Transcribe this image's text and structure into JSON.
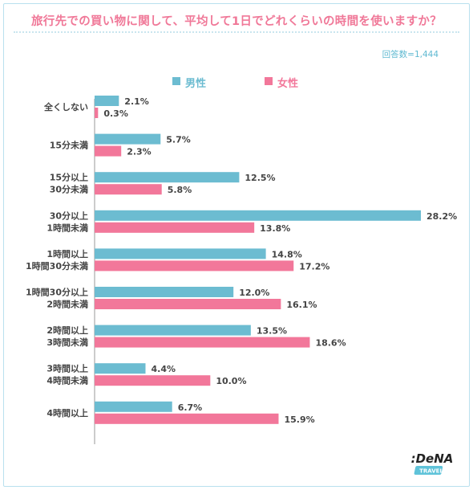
{
  "title": "旅行先での買い物に関して、平均して1日でどれくらいの時間を使いますか？",
  "respondents": "回答数=1,444",
  "colors": {
    "male": "#6cbcd1",
    "female": "#f2779a",
    "title": "#f07898",
    "accent": "#5fb9d1"
  },
  "logo": {
    "main": ":DeNA",
    "sub": "TRAVEL"
  },
  "chart_data": {
    "type": "bar",
    "orientation": "horizontal",
    "categories": [
      [
        "全くしない"
      ],
      [
        "15分未満"
      ],
      [
        "15分以上",
        "30分未満"
      ],
      [
        "30分以上",
        "1時間未満"
      ],
      [
        "1時間以上",
        "1時間30分未満"
      ],
      [
        "1時間30分以上",
        "2時間未満"
      ],
      [
        "2時間以上",
        "3時間未満"
      ],
      [
        "3時間以上",
        "4時間未満"
      ],
      [
        "4時間以上"
      ]
    ],
    "series": [
      {
        "name": "男性",
        "values": [
          2.1,
          5.7,
          12.5,
          28.2,
          14.8,
          12.0,
          13.5,
          4.4,
          6.7
        ]
      },
      {
        "name": "女性",
        "values": [
          0.3,
          2.3,
          5.8,
          13.8,
          17.2,
          16.1,
          18.6,
          10.0,
          15.9
        ]
      }
    ],
    "value_suffix": "%",
    "xlim": [
      0,
      28.2
    ],
    "grid": false,
    "legend": "top-center"
  }
}
